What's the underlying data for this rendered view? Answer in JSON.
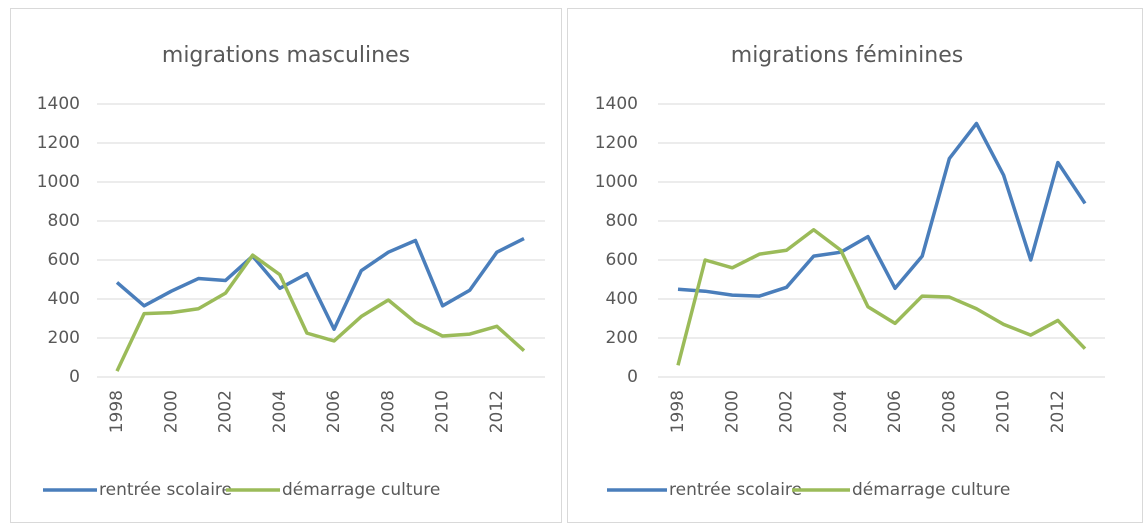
{
  "chart_data": [
    {
      "type": "line",
      "title": "migrations masculines",
      "x": [
        1998,
        1999,
        2000,
        2001,
        2002,
        2003,
        2004,
        2005,
        2006,
        2007,
        2008,
        2009,
        2010,
        2011,
        2012,
        2013
      ],
      "series": [
        {
          "name": "rentrée scolaire",
          "color": "#4a7ebb",
          "values": [
            485,
            365,
            440,
            505,
            495,
            620,
            455,
            530,
            245,
            545,
            640,
            700,
            365,
            445,
            640,
            710
          ]
        },
        {
          "name": "démarrage culture",
          "color": "#9bbb59",
          "values": [
            30,
            325,
            330,
            350,
            430,
            625,
            525,
            225,
            185,
            310,
            395,
            280,
            210,
            220,
            260,
            135
          ]
        }
      ],
      "xlim": [
        1998,
        2013
      ],
      "xticks": [
        1998,
        2000,
        2002,
        2004,
        2006,
        2008,
        2010,
        2012
      ],
      "ylim": [
        0,
        1400
      ],
      "yticks": [
        0,
        200,
        400,
        600,
        800,
        1000,
        1200,
        1400
      ],
      "grid": true,
      "legend": "bottom"
    },
    {
      "type": "line",
      "title": "migrations féminines",
      "x": [
        1998,
        1999,
        2000,
        2001,
        2002,
        2003,
        2004,
        2005,
        2006,
        2007,
        2008,
        2009,
        2010,
        2011,
        2012,
        2013
      ],
      "series": [
        {
          "name": "rentrée scolaire",
          "color": "#4a7ebb",
          "values": [
            450,
            440,
            420,
            415,
            460,
            620,
            640,
            720,
            455,
            620,
            1120,
            1300,
            1035,
            600,
            1100,
            890
          ]
        },
        {
          "name": "démarrage culture",
          "color": "#9bbb59",
          "values": [
            60,
            600,
            560,
            630,
            650,
            755,
            650,
            360,
            275,
            415,
            410,
            350,
            270,
            215,
            290,
            145
          ]
        }
      ],
      "xlim": [
        1998,
        2013
      ],
      "xticks": [
        1998,
        2000,
        2002,
        2004,
        2006,
        2008,
        2010,
        2012
      ],
      "ylim": [
        0,
        1400
      ],
      "yticks": [
        0,
        200,
        400,
        600,
        800,
        1000,
        1200,
        1400
      ],
      "grid": true,
      "legend": "bottom"
    }
  ]
}
